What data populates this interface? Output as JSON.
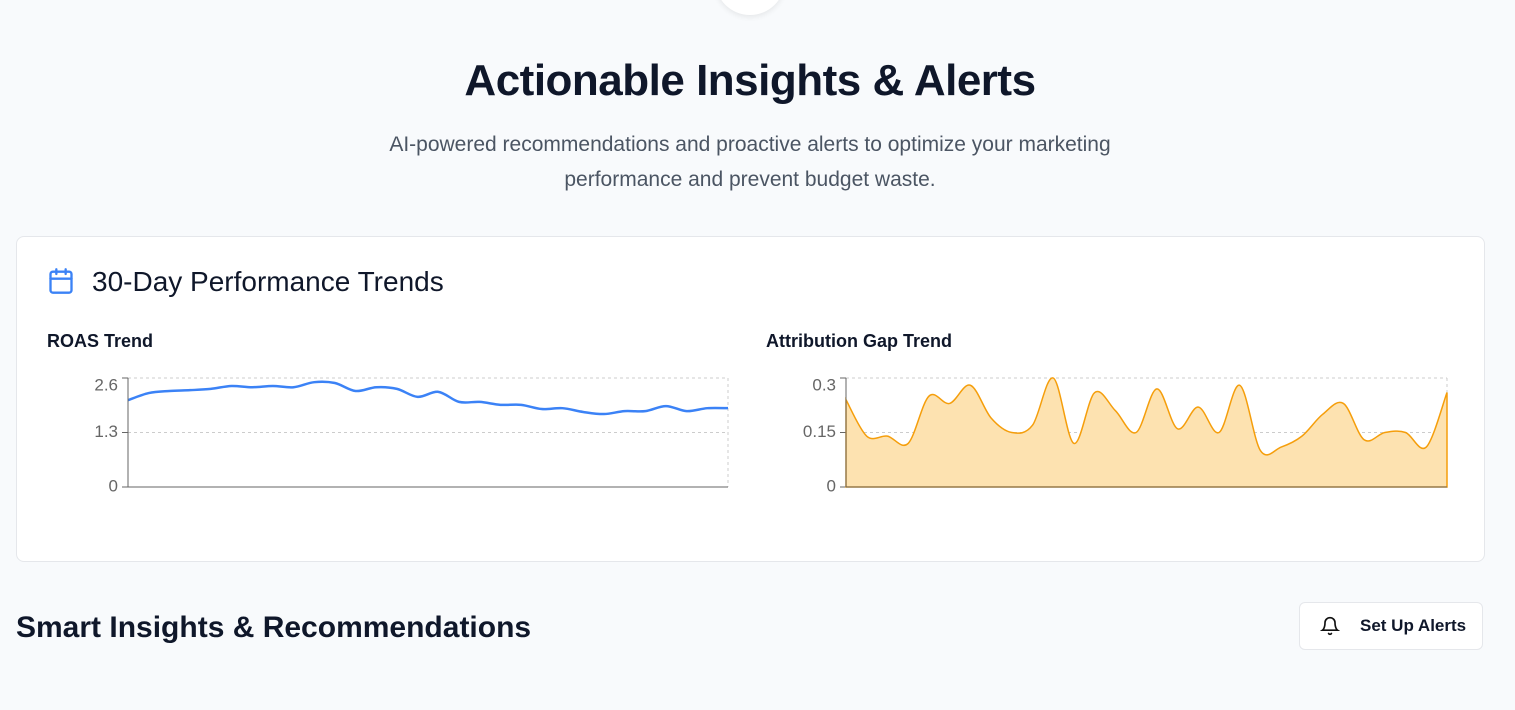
{
  "header": {
    "title": "Actionable Insights & Alerts",
    "subtitle": "AI-powered recommendations and proactive alerts to optimize your marketing performance and prevent budget waste."
  },
  "card": {
    "title": "30-Day Performance Trends"
  },
  "chart_data": [
    {
      "type": "line",
      "title": "ROAS Trend",
      "color": "#3b82f6",
      "grid": true,
      "ylim": [
        0,
        2.6
      ],
      "yticks": [
        0,
        1.3,
        2.6
      ],
      "values": [
        2.07,
        2.24,
        2.29,
        2.31,
        2.34,
        2.41,
        2.38,
        2.41,
        2.38,
        2.5,
        2.48,
        2.29,
        2.38,
        2.34,
        2.15,
        2.27,
        2.03,
        2.03,
        1.96,
        1.96,
        1.86,
        1.88,
        1.79,
        1.74,
        1.81,
        1.81,
        1.93,
        1.81,
        1.88,
        1.88
      ]
    },
    {
      "type": "area",
      "title": "Attribution Gap Trend",
      "color": "#f59e0b",
      "fill": "#fde2b0",
      "grid": true,
      "ylim": [
        0,
        0.3
      ],
      "yticks": [
        0,
        0.15,
        0.3
      ],
      "values": [
        0.24,
        0.14,
        0.14,
        0.12,
        0.25,
        0.23,
        0.28,
        0.19,
        0.15,
        0.17,
        0.3,
        0.12,
        0.26,
        0.21,
        0.15,
        0.27,
        0.16,
        0.22,
        0.15,
        0.28,
        0.1,
        0.11,
        0.14,
        0.2,
        0.23,
        0.13,
        0.15,
        0.15,
        0.11,
        0.26
      ]
    }
  ],
  "section": {
    "title": "Smart Insights & Recommendations",
    "button": "Set Up Alerts"
  }
}
